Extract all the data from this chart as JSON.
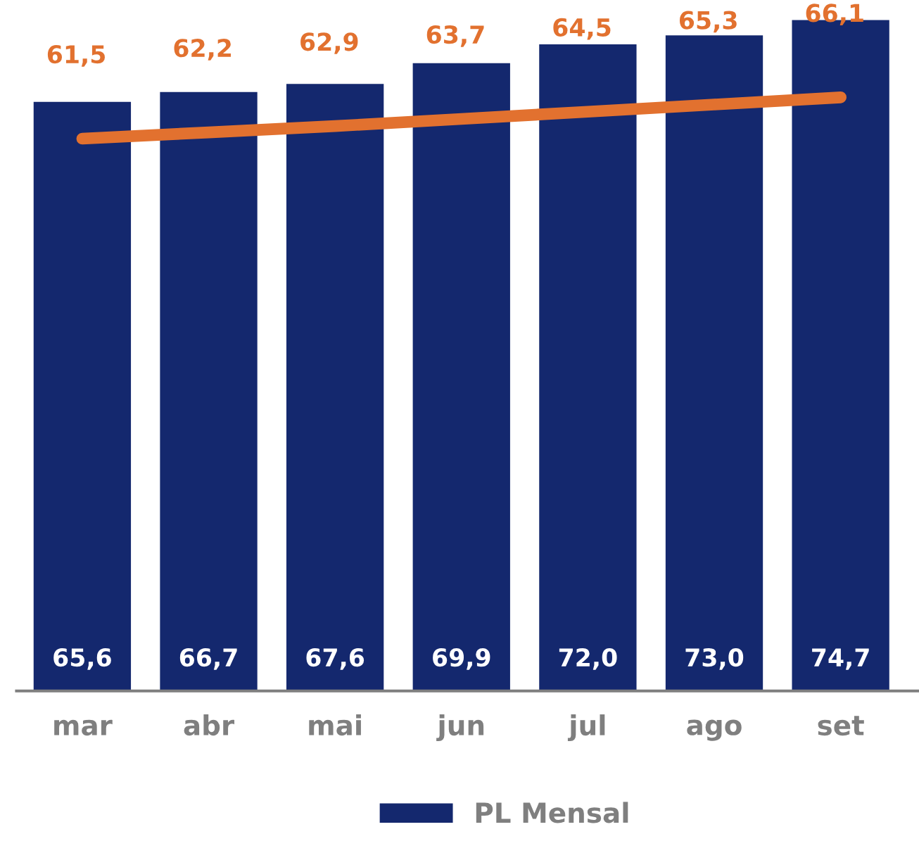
{
  "chart_data": {
    "type": "bar",
    "categories": [
      "mar",
      "abr",
      "mai",
      "jun",
      "jul",
      "ago",
      "set"
    ],
    "series": [
      {
        "name": "PL Mensal",
        "color": "#14286e",
        "values": [
          65.6,
          66.7,
          67.6,
          69.9,
          72.0,
          73.0,
          74.7
        ],
        "value_labels": [
          "65,6",
          "66,7",
          "67,6",
          "69,9",
          "72,0",
          "73,0",
          "74,7"
        ]
      },
      {
        "type": "line",
        "color": "#e2712f",
        "values": [
          61.5,
          62.2,
          62.9,
          63.7,
          64.5,
          65.3,
          66.1
        ],
        "value_labels": [
          "61,5",
          "62,2",
          "62,9",
          "63,7",
          "64,5",
          "65,3",
          "66,1"
        ]
      }
    ],
    "tick_labels": "x",
    "grid": false,
    "legend": "bottom",
    "marker": "none",
    "line_style": "solid"
  }
}
